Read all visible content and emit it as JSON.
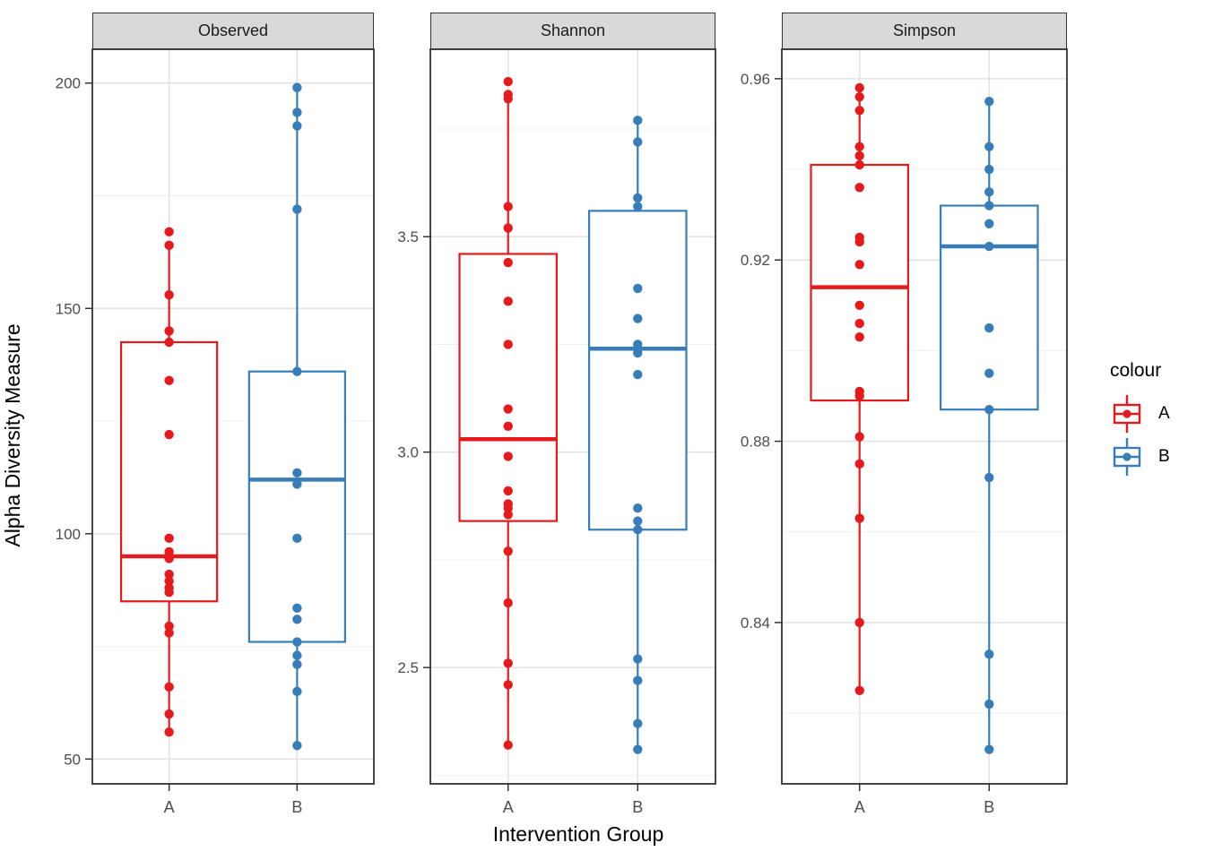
{
  "figure": {
    "ylabel": "Alpha Diversity Measure",
    "xlabel": "Intervention Group"
  },
  "legend": {
    "title": "colour",
    "entries": [
      {
        "label": "A",
        "color": "#E41A1C"
      },
      {
        "label": "B",
        "color": "#377EB8"
      }
    ]
  },
  "theme": {
    "strip_fill": "#D9D9D9",
    "panel_border": "#333333",
    "grid_major": "#E3E3E3",
    "grid_minor": "#F0F0F0",
    "tick_color": "#333333",
    "axis_text": "#4D4D4D",
    "red": "#E41A1C",
    "blue": "#377EB8"
  },
  "chart_data": [
    {
      "type": "boxplot",
      "title": "Observed",
      "categories": [
        "A",
        "B"
      ],
      "ylim": [
        44.5,
        207.5
      ],
      "yticks": [
        50,
        100,
        150,
        200
      ],
      "ytick_labels": [
        "50",
        "100",
        "150",
        "200"
      ],
      "yticks_minor": [
        75,
        125,
        175
      ],
      "grid": true,
      "series": [
        {
          "name": "A",
          "color": "#E41A1C",
          "box": {
            "min": 56,
            "q1": 85,
            "median": 95,
            "q3": 142.5,
            "max": 164
          },
          "points": [
            167,
            164,
            153,
            145,
            142.5,
            134,
            122,
            99,
            96,
            95,
            94.5,
            91,
            89.5,
            88,
            87,
            79.5,
            78,
            66,
            60,
            56
          ]
        },
        {
          "name": "B",
          "color": "#377EB8",
          "box": {
            "min": 53,
            "q1": 76,
            "median": 112,
            "q3": 136,
            "max": 199
          },
          "points": [
            199,
            193.5,
            190.5,
            172,
            136,
            113.5,
            111,
            99,
            83.5,
            81,
            76,
            73,
            71,
            65,
            53
          ]
        }
      ]
    },
    {
      "type": "boxplot",
      "title": "Shannon",
      "categories": [
        "A",
        "B"
      ],
      "ylim": [
        2.23,
        3.935
      ],
      "yticks": [
        2.5,
        3.0,
        3.5
      ],
      "ytick_labels": [
        "2.5",
        "3.0",
        "3.5"
      ],
      "yticks_minor": [
        2.25,
        2.75,
        3.25,
        3.75
      ],
      "grid": true,
      "series": [
        {
          "name": "A",
          "color": "#E41A1C",
          "box": {
            "min": 2.32,
            "q1": 2.84,
            "median": 3.03,
            "q3": 3.46,
            "max": 3.83
          },
          "points": [
            3.86,
            3.83,
            3.82,
            3.57,
            3.52,
            3.44,
            3.35,
            3.25,
            3.1,
            3.06,
            2.99,
            2.91,
            2.88,
            2.87,
            2.855,
            2.77,
            2.65,
            2.51,
            2.46,
            2.32
          ]
        },
        {
          "name": "B",
          "color": "#377EB8",
          "box": {
            "min": 2.31,
            "q1": 2.82,
            "median": 3.24,
            "q3": 3.56,
            "max": 3.77
          },
          "points": [
            3.77,
            3.72,
            3.59,
            3.57,
            3.38,
            3.31,
            3.25,
            3.23,
            3.18,
            2.87,
            2.84,
            2.82,
            2.52,
            2.47,
            2.37,
            2.31
          ]
        }
      ]
    },
    {
      "type": "boxplot",
      "title": "Simpson",
      "categories": [
        "A",
        "B"
      ],
      "ylim": [
        0.8044,
        0.9665
      ],
      "yticks": [
        0.84,
        0.88,
        0.92,
        0.96
      ],
      "ytick_labels": [
        "0.84",
        "0.88",
        "0.92",
        "0.96"
      ],
      "yticks_minor": [
        0.82,
        0.86,
        0.9,
        0.94
      ],
      "grid": true,
      "series": [
        {
          "name": "A",
          "color": "#E41A1C",
          "box": {
            "min": 0.825,
            "q1": 0.889,
            "median": 0.914,
            "q3": 0.941,
            "max": 0.956
          },
          "points": [
            0.958,
            0.956,
            0.953,
            0.945,
            0.943,
            0.941,
            0.936,
            0.925,
            0.924,
            0.919,
            0.91,
            0.906,
            0.903,
            0.891,
            0.89,
            0.881,
            0.875,
            0.863,
            0.84,
            0.825
          ]
        },
        {
          "name": "B",
          "color": "#377EB8",
          "box": {
            "min": 0.812,
            "q1": 0.887,
            "median": 0.923,
            "q3": 0.932,
            "max": 0.955
          },
          "points": [
            0.955,
            0.945,
            0.94,
            0.935,
            0.932,
            0.928,
            0.923,
            0.905,
            0.895,
            0.887,
            0.872,
            0.833,
            0.822,
            0.812
          ]
        }
      ]
    }
  ]
}
